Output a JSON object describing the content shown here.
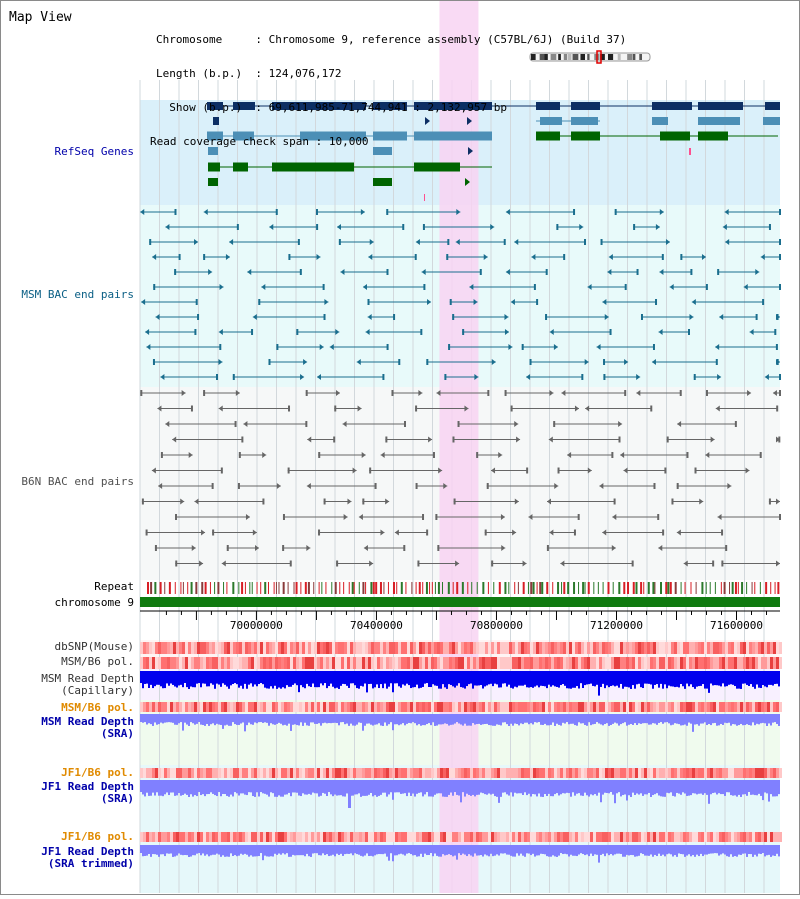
{
  "header": {
    "title": "Map View",
    "info": [
      {
        "label": "Chromosome     ",
        "value": ": Chromosome 9, reference assembly (C57BL/6J) (Build 37)"
      },
      {
        "label": "Length (b.p.)  ",
        "value": ": 124,076,172"
      },
      {
        "label": "  Show (b.p.)  ",
        "value": ": 69,611,985-71,744,941 : 2,132,957 bp"
      },
      {
        "label": "Read coverage check span ",
        "value": ": 10,000"
      }
    ]
  },
  "view": {
    "start": 69611985,
    "end": 71744941,
    "highlight": [
      70610000,
      70740000
    ]
  },
  "tracks": {
    "refseq": {
      "label": "RefSeq Genes"
    },
    "msm_bac": {
      "label": "MSM BAC end pairs"
    },
    "b6n_bac": {
      "label": "B6N BAC end pairs"
    },
    "repeat": {
      "label": "Repeat"
    },
    "chromosome": {
      "label": "chromosome 9"
    },
    "dbsnp": {
      "label": "dbSNP(Mouse)"
    },
    "msm_b6_pol_1": {
      "label": "MSM/B6 pol."
    },
    "msm_cap": {
      "label1": "MSM Read Depth",
      "label2": "(Capillary)"
    },
    "msm_b6_pol_2": {
      "label": "MSM/B6 pol."
    },
    "msm_sra": {
      "label1": "MSM Read Depth",
      "label2": "(SRA)"
    },
    "jf1_pol_1": {
      "label": "JF1/B6 pol."
    },
    "jf1_sra": {
      "label1": "JF1 Read Depth",
      "label2": "(SRA)"
    },
    "jf1_pol_2": {
      "label": "JF1/B6 pol."
    },
    "jf1_trim": {
      "label1": "JF1 Read Depth",
      "label2": "(SRA trimmed)"
    }
  },
  "axis": {
    "ticks": [
      70000000,
      70400000,
      70800000,
      71200000,
      71600000
    ]
  },
  "colors": {
    "gene_navy": "#0d2f64",
    "gene_steel": "#4c8fb6",
    "gene_green": "#006400",
    "msm_pair": "#1a6e8e",
    "b6n_pair": "#666666",
    "highlight": "#f8d4f2",
    "label_blue": "#0000aa",
    "label_orange": "#e08a00",
    "snp_red": "#e0202a",
    "depth_blue": "#0000ee",
    "depth_violet": "#8080ff"
  }
}
